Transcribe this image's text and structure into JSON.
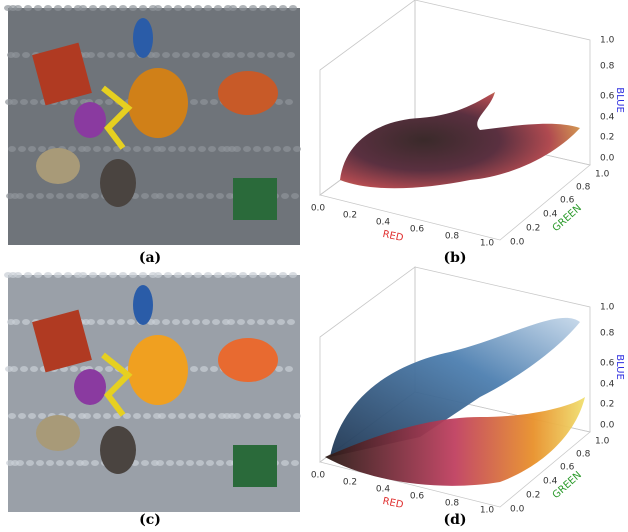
{
  "panels": [
    {
      "label": "(a)"
    },
    {
      "label": "(b)",
      "plot": {
        "x_axis": "RED",
        "y_axis": "GREEN",
        "z_axis": "BLUE",
        "x_ticks": [
          "0.0",
          "0.2",
          "0.4",
          "0.6",
          "0.8",
          "1.0"
        ],
        "y_ticks": [
          "0.0",
          "0.2",
          "0.4",
          "0.6",
          "0.8",
          "1.0"
        ],
        "z_ticks": [
          "0.0",
          "0.2",
          "0.4",
          "0.6",
          "0.8",
          "1.0"
        ]
      }
    },
    {
      "label": "(c)"
    },
    {
      "label": "(d)",
      "plot": {
        "x_axis": "RED",
        "y_axis": "GREEN",
        "z_axis": "BLUE",
        "x_ticks": [
          "0.0",
          "0.2",
          "0.4",
          "0.6",
          "0.8",
          "1.0"
        ],
        "y_ticks": [
          "0.0",
          "0.2",
          "0.4",
          "0.6",
          "0.8",
          "1.0"
        ],
        "z_ticks": [
          "0.0",
          "0.2",
          "0.4",
          "0.6",
          "0.8",
          "1.0"
        ]
      }
    }
  ]
}
